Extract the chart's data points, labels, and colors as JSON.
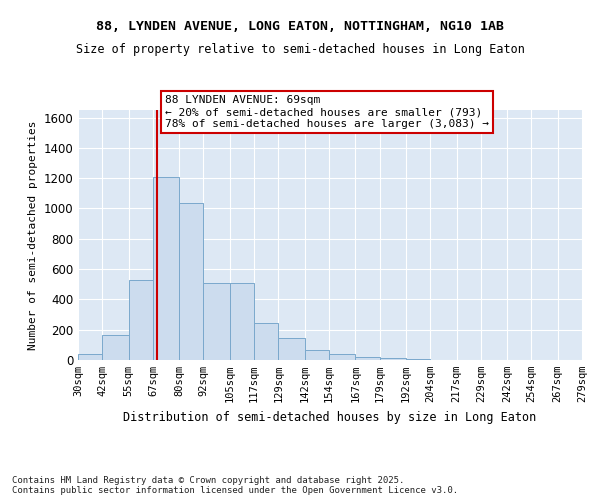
{
  "title_line1": "88, LYNDEN AVENUE, LONG EATON, NOTTINGHAM, NG10 1AB",
  "title_line2": "Size of property relative to semi-detached houses in Long Eaton",
  "xlabel": "Distribution of semi-detached houses by size in Long Eaton",
  "ylabel": "Number of semi-detached properties",
  "footnote": "Contains HM Land Registry data © Crown copyright and database right 2025.\nContains public sector information licensed under the Open Government Licence v3.0.",
  "bar_color": "#ccdcee",
  "bar_edge_color": "#7aa8cc",
  "background_color": "#dde8f4",
  "grid_color": "#ffffff",
  "bins": [
    30,
    42,
    55,
    67,
    80,
    92,
    105,
    117,
    129,
    142,
    154,
    167,
    179,
    192,
    204,
    217,
    229,
    242,
    254,
    267,
    279
  ],
  "bar_h": [
    40,
    165,
    530,
    1210,
    1035,
    505,
    505,
    245,
    145,
    65,
    38,
    20,
    10,
    5,
    0,
    0,
    0,
    0,
    0,
    0
  ],
  "bin_labels": [
    "30sqm",
    "42sqm",
    "55sqm",
    "67sqm",
    "80sqm",
    "92sqm",
    "105sqm",
    "117sqm",
    "129sqm",
    "142sqm",
    "154sqm",
    "167sqm",
    "179sqm",
    "192sqm",
    "204sqm",
    "217sqm",
    "229sqm",
    "242sqm",
    "254sqm",
    "267sqm",
    "279sqm"
  ],
  "property_size": 69,
  "annotation_text": "88 LYNDEN AVENUE: 69sqm\n← 20% of semi-detached houses are smaller (793)\n78% of semi-detached houses are larger (3,083) →",
  "annotation_box_color": "#ffffff",
  "annotation_border_color": "#cc0000",
  "vline_color": "#cc0000",
  "ylim": [
    0,
    1650
  ],
  "yticks": [
    0,
    200,
    400,
    600,
    800,
    1000,
    1200,
    1400,
    1600
  ]
}
